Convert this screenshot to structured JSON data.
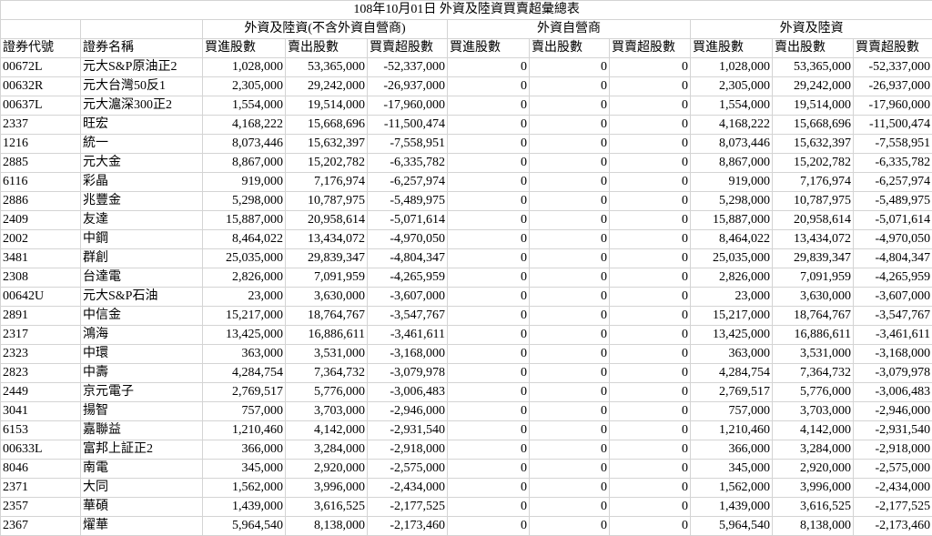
{
  "title": "108年10月01日 外資及陸資買賣超彙總表",
  "groups": [
    "外資及陸資(不含外資自營商)",
    "外資自營商",
    "外資及陸資"
  ],
  "columns": [
    "證券代號",
    "證券名稱",
    "買進股數",
    "賣出股數",
    "買賣超股數",
    "買進股數",
    "賣出股數",
    "買賣超股數",
    "買進股數",
    "賣出股數",
    "買賣超股數"
  ],
  "rows": [
    [
      "00672L",
      "元大S&P原油正2",
      "1,028,000",
      "53,365,000",
      "-52,337,000",
      "0",
      "0",
      "0",
      "1,028,000",
      "53,365,000",
      "-52,337,000"
    ],
    [
      "00632R",
      "元大台灣50反1",
      "2,305,000",
      "29,242,000",
      "-26,937,000",
      "0",
      "0",
      "0",
      "2,305,000",
      "29,242,000",
      "-26,937,000"
    ],
    [
      "00637L",
      "元大滬深300正2",
      "1,554,000",
      "19,514,000",
      "-17,960,000",
      "0",
      "0",
      "0",
      "1,554,000",
      "19,514,000",
      "-17,960,000"
    ],
    [
      "2337",
      "旺宏",
      "4,168,222",
      "15,668,696",
      "-11,500,474",
      "0",
      "0",
      "0",
      "4,168,222",
      "15,668,696",
      "-11,500,474"
    ],
    [
      "1216",
      "統一",
      "8,073,446",
      "15,632,397",
      "-7,558,951",
      "0",
      "0",
      "0",
      "8,073,446",
      "15,632,397",
      "-7,558,951"
    ],
    [
      "2885",
      "元大金",
      "8,867,000",
      "15,202,782",
      "-6,335,782",
      "0",
      "0",
      "0",
      "8,867,000",
      "15,202,782",
      "-6,335,782"
    ],
    [
      "6116",
      "彩晶",
      "919,000",
      "7,176,974",
      "-6,257,974",
      "0",
      "0",
      "0",
      "919,000",
      "7,176,974",
      "-6,257,974"
    ],
    [
      "2886",
      "兆豐金",
      "5,298,000",
      "10,787,975",
      "-5,489,975",
      "0",
      "0",
      "0",
      "5,298,000",
      "10,787,975",
      "-5,489,975"
    ],
    [
      "2409",
      "友達",
      "15,887,000",
      "20,958,614",
      "-5,071,614",
      "0",
      "0",
      "0",
      "15,887,000",
      "20,958,614",
      "-5,071,614"
    ],
    [
      "2002",
      "中鋼",
      "8,464,022",
      "13,434,072",
      "-4,970,050",
      "0",
      "0",
      "0",
      "8,464,022",
      "13,434,072",
      "-4,970,050"
    ],
    [
      "3481",
      "群創",
      "25,035,000",
      "29,839,347",
      "-4,804,347",
      "0",
      "0",
      "0",
      "25,035,000",
      "29,839,347",
      "-4,804,347"
    ],
    [
      "2308",
      "台達電",
      "2,826,000",
      "7,091,959",
      "-4,265,959",
      "0",
      "0",
      "0",
      "2,826,000",
      "7,091,959",
      "-4,265,959"
    ],
    [
      "00642U",
      "元大S&P石油",
      "23,000",
      "3,630,000",
      "-3,607,000",
      "0",
      "0",
      "0",
      "23,000",
      "3,630,000",
      "-3,607,000"
    ],
    [
      "2891",
      "中信金",
      "15,217,000",
      "18,764,767",
      "-3,547,767",
      "0",
      "0",
      "0",
      "15,217,000",
      "18,764,767",
      "-3,547,767"
    ],
    [
      "2317",
      "鴻海",
      "13,425,000",
      "16,886,611",
      "-3,461,611",
      "0",
      "0",
      "0",
      "13,425,000",
      "16,886,611",
      "-3,461,611"
    ],
    [
      "2323",
      "中環",
      "363,000",
      "3,531,000",
      "-3,168,000",
      "0",
      "0",
      "0",
      "363,000",
      "3,531,000",
      "-3,168,000"
    ],
    [
      "2823",
      "中壽",
      "4,284,754",
      "7,364,732",
      "-3,079,978",
      "0",
      "0",
      "0",
      "4,284,754",
      "7,364,732",
      "-3,079,978"
    ],
    [
      "2449",
      "京元電子",
      "2,769,517",
      "5,776,000",
      "-3,006,483",
      "0",
      "0",
      "0",
      "2,769,517",
      "5,776,000",
      "-3,006,483"
    ],
    [
      "3041",
      "揚智",
      "757,000",
      "3,703,000",
      "-2,946,000",
      "0",
      "0",
      "0",
      "757,000",
      "3,703,000",
      "-2,946,000"
    ],
    [
      "6153",
      "嘉聯益",
      "1,210,460",
      "4,142,000",
      "-2,931,540",
      "0",
      "0",
      "0",
      "1,210,460",
      "4,142,000",
      "-2,931,540"
    ],
    [
      "00633L",
      "富邦上証正2",
      "366,000",
      "3,284,000",
      "-2,918,000",
      "0",
      "0",
      "0",
      "366,000",
      "3,284,000",
      "-2,918,000"
    ],
    [
      "8046",
      "南電",
      "345,000",
      "2,920,000",
      "-2,575,000",
      "0",
      "0",
      "0",
      "345,000",
      "2,920,000",
      "-2,575,000"
    ],
    [
      "2371",
      "大同",
      "1,562,000",
      "3,996,000",
      "-2,434,000",
      "0",
      "0",
      "0",
      "1,562,000",
      "3,996,000",
      "-2,434,000"
    ],
    [
      "2357",
      "華碩",
      "1,439,000",
      "3,616,525",
      "-2,177,525",
      "0",
      "0",
      "0",
      "1,439,000",
      "3,616,525",
      "-2,177,525"
    ],
    [
      "2367",
      "燿華",
      "5,964,540",
      "8,138,000",
      "-2,173,460",
      "0",
      "0",
      "0",
      "5,964,540",
      "8,138,000",
      "-2,173,460"
    ]
  ]
}
